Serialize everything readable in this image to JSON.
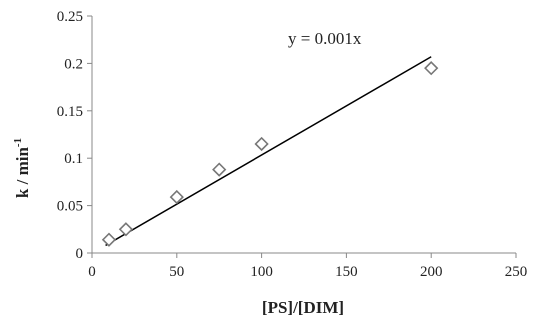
{
  "chart_data": {
    "type": "scatter",
    "x": [
      10,
      20,
      50,
      75,
      100,
      200
    ],
    "y": [
      0.014,
      0.025,
      0.059,
      0.088,
      0.115,
      0.195
    ],
    "xlim": [
      0,
      250
    ],
    "ylim": [
      0,
      0.25
    ],
    "x_ticks": [
      "0",
      "50",
      "100",
      "150",
      "200",
      "250"
    ],
    "y_ticks": [
      "0",
      "0.05",
      "0.1",
      "0.15",
      "0.2",
      "0.25"
    ],
    "xlabel": "[PS]/[DIM]",
    "ylabel_main": "k / min",
    "ylabel_sup": "-1",
    "trendline": {
      "slope": 0.001,
      "intercept": 0.0,
      "x_start": 8,
      "x_end": 200,
      "y_end": 0.207
    },
    "annotation": "y = 0.001x",
    "grid": false,
    "legend": "none",
    "marker": "diamond-open",
    "colors": {
      "marker": "#777777",
      "line": "#000000",
      "axis": "#888888"
    }
  }
}
